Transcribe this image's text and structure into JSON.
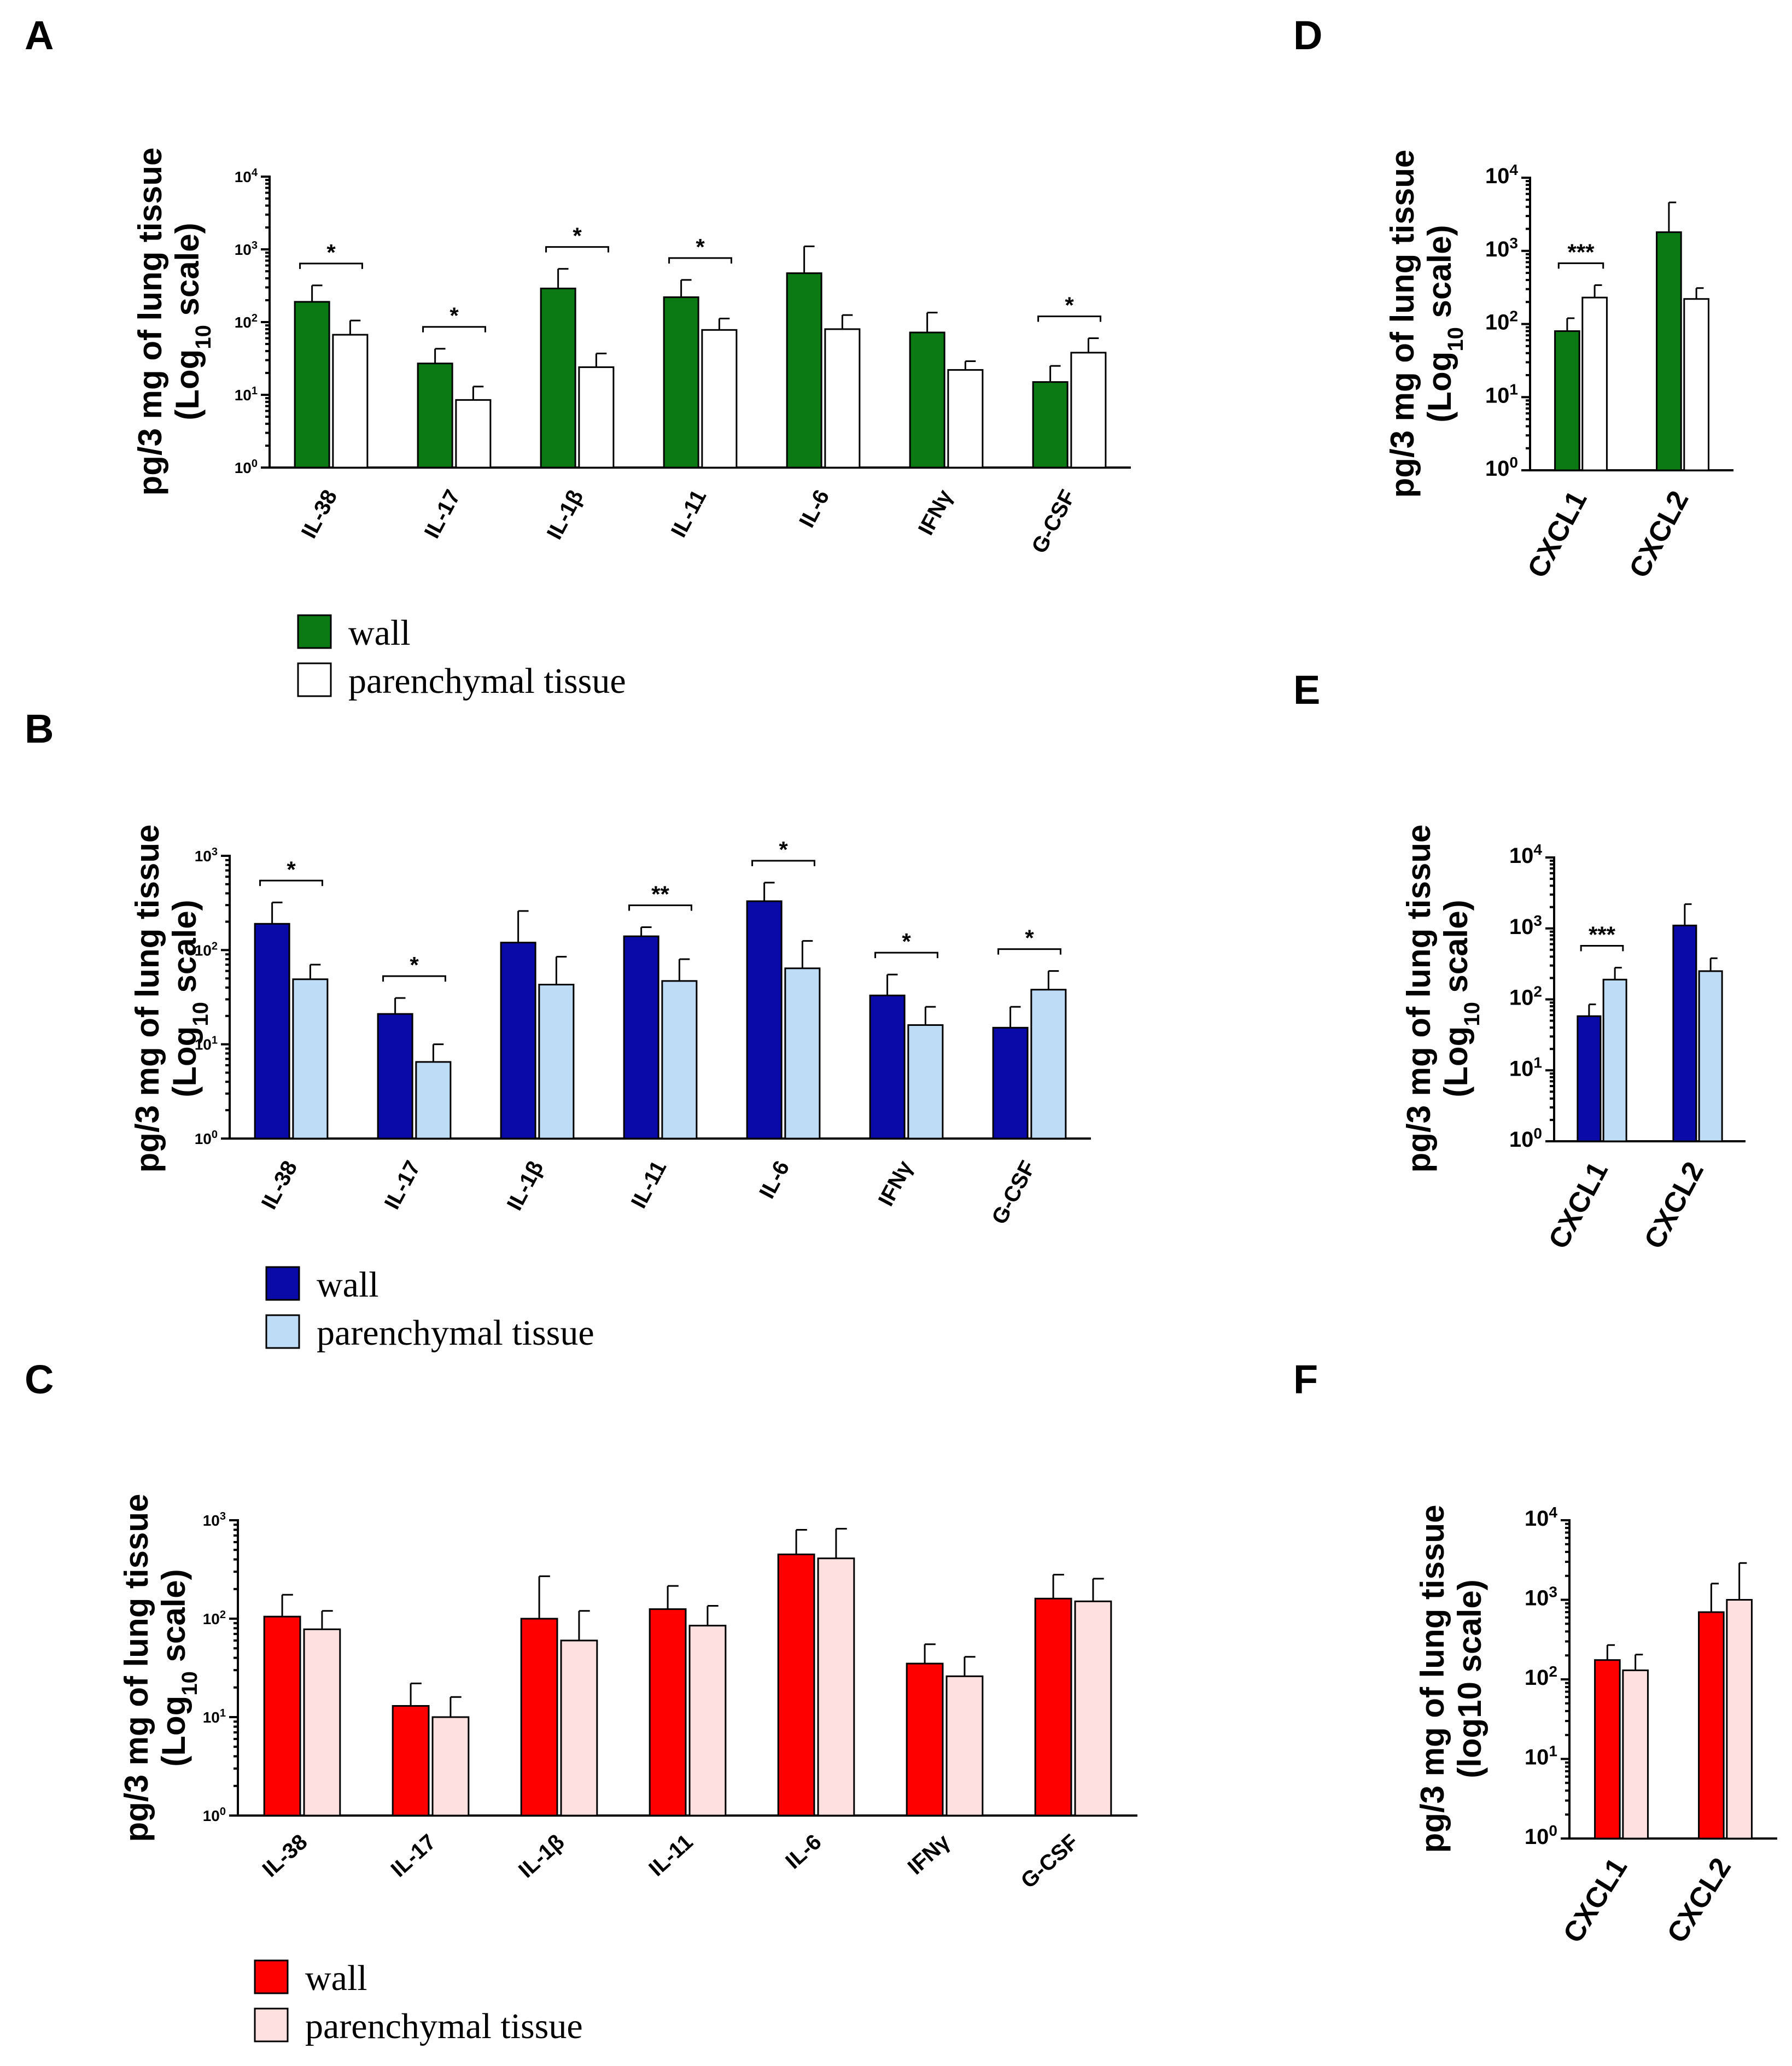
{
  "chart_data": [
    {
      "id": "A",
      "type": "bar",
      "panel_label": "A",
      "ylabel": "pg/3 mg of lung tissue",
      "ylabel_sub": [
        "(Log",
        "10",
        " scale)"
      ],
      "yscale": "log",
      "ylim": [
        1,
        10000
      ],
      "ytick_base": "10",
      "ytick_exps": [
        "0",
        "1",
        "2",
        "3",
        "4"
      ],
      "categories": [
        "IL-38",
        "IL-17",
        "IL-1β",
        "IL-11",
        "IL-6",
        "IFNγ",
        "G-CSF"
      ],
      "series": [
        {
          "name": "wall",
          "color": "#0b7a14",
          "values": [
            190,
            27,
            290,
            220,
            470,
            72,
            15
          ],
          "errors": [
            320,
            43,
            540,
            380,
            1100,
            135,
            25
          ]
        },
        {
          "name": "parenchymal tissue",
          "color": "#ffffff",
          "values": [
            67,
            8.5,
            24,
            78,
            80,
            22,
            38
          ],
          "errors": [
            105,
            13,
            37,
            112,
            125,
            29,
            60
          ]
        }
      ],
      "significance": [
        {
          "category": 0,
          "label": "*"
        },
        {
          "category": 1,
          "label": "*"
        },
        {
          "category": 2,
          "label": "*"
        },
        {
          "category": 3,
          "label": "*"
        },
        {
          "category": 6,
          "label": "*"
        }
      ],
      "legend": [
        {
          "label": "wall",
          "color": "#0b7a14"
        },
        {
          "label": "parenchymal tissue",
          "color": "#ffffff"
        }
      ]
    },
    {
      "id": "B",
      "type": "bar",
      "panel_label": "B",
      "ylabel": "pg/3 mg of lung tissue",
      "ylabel_sub": [
        "(Log",
        "10",
        " scale)"
      ],
      "yscale": "log",
      "ylim": [
        1,
        1000
      ],
      "ytick_base": "10",
      "ytick_exps": [
        "0",
        "1",
        "2",
        "3"
      ],
      "categories": [
        "IL-38",
        "IL-17",
        "IL-1β",
        "IL-11",
        "IL-6",
        "IFNγ",
        "G-CSF"
      ],
      "series": [
        {
          "name": "wall",
          "color": "#0a0aa8",
          "values": [
            190,
            21,
            120,
            140,
            330,
            33,
            15
          ],
          "errors": [
            320,
            31,
            260,
            175,
            520,
            55,
            25
          ]
        },
        {
          "name": "parenchymal tissue",
          "color": "#bfdcf7",
          "values": [
            49,
            6.5,
            43,
            47,
            64,
            16,
            38
          ],
          "errors": [
            70,
            10,
            85,
            80,
            125,
            25,
            60
          ]
        }
      ],
      "significance": [
        {
          "category": 0,
          "label": "*"
        },
        {
          "category": 1,
          "label": "*"
        },
        {
          "category": 3,
          "label": "**"
        },
        {
          "category": 4,
          "label": "*"
        },
        {
          "category": 5,
          "label": "*"
        },
        {
          "category": 6,
          "label": "*"
        }
      ],
      "legend": [
        {
          "label": "wall",
          "color": "#0a0aa8"
        },
        {
          "label": "parenchymal tissue",
          "color": "#bfdcf7"
        }
      ]
    },
    {
      "id": "C",
      "type": "bar",
      "panel_label": "C",
      "ylabel": "pg/3 mg of lung tissue",
      "ylabel_sub": [
        "(Log",
        "10",
        " scale)"
      ],
      "yscale": "log",
      "ylim": [
        1,
        1000
      ],
      "ytick_base": "10",
      "ytick_exps": [
        "0",
        "1",
        "2",
        "3"
      ],
      "categories": [
        "IL-38",
        "IL-17",
        "IL-1β",
        "IL-11",
        "IL-6",
        "IFNγ",
        "G-CSF"
      ],
      "series": [
        {
          "name": "wall",
          "color": "#ff0000",
          "values": [
            105,
            13,
            100,
            125,
            450,
            35,
            160
          ],
          "errors": [
            175,
            22,
            270,
            215,
            800,
            55,
            280
          ]
        },
        {
          "name": "parenchymal tissue",
          "color": "#ffe0e0",
          "values": [
            78,
            10,
            60,
            85,
            410,
            26,
            150
          ],
          "errors": [
            120,
            16,
            120,
            135,
            820,
            41,
            255
          ]
        }
      ],
      "significance": [],
      "legend": [
        {
          "label": "wall",
          "color": "#ff0000"
        },
        {
          "label": "parenchymal tissue",
          "color": "#ffe0e0"
        }
      ]
    },
    {
      "id": "D",
      "type": "bar",
      "panel_label": "D",
      "ylabel": "pg/3 mg of lung tissue",
      "ylabel_sub": [
        "(Log",
        "10",
        " scale)"
      ],
      "yscale": "log",
      "ylim": [
        1,
        10000
      ],
      "ytick_base": "10",
      "ytick_exps": [
        "0",
        "1",
        "2",
        "3",
        "4"
      ],
      "categories": [
        "CXCL1",
        "CXCL2"
      ],
      "series": [
        {
          "name": "wall",
          "color": "#0b7a14",
          "values": [
            80,
            1800
          ],
          "errors": [
            120,
            4600
          ]
        },
        {
          "name": "parenchymal tissue",
          "color": "#ffffff",
          "values": [
            230,
            220
          ],
          "errors": [
            340,
            310
          ]
        }
      ],
      "significance": [
        {
          "category": 0,
          "label": "***"
        }
      ]
    },
    {
      "id": "E",
      "type": "bar",
      "panel_label": "E",
      "ylabel": "pg/3 mg of lung tissue",
      "ylabel_sub": [
        "(Log",
        "10",
        " scale)"
      ],
      "yscale": "log",
      "ylim": [
        1,
        10000
      ],
      "ytick_base": "10",
      "ytick_exps": [
        "0",
        "1",
        "2",
        "3",
        "4"
      ],
      "categories": [
        "CXCL1",
        "CXCL2"
      ],
      "series": [
        {
          "name": "wall",
          "color": "#0a0aa8",
          "values": [
            58,
            1100
          ],
          "errors": [
            85,
            2200
          ]
        },
        {
          "name": "parenchymal tissue",
          "color": "#bfdcf7",
          "values": [
            190,
            250
          ],
          "errors": [
            280,
            380
          ]
        }
      ],
      "significance": [
        {
          "category": 0,
          "label": "***"
        }
      ]
    },
    {
      "id": "F",
      "type": "bar",
      "panel_label": "F",
      "ylabel": "pg/3 mg of lung tissue",
      "ylabel_sub": [
        "(log10 scale)"
      ],
      "yscale": "log",
      "ylim": [
        1,
        10000
      ],
      "ytick_base": "10",
      "ytick_exps": [
        "0",
        "1",
        "2",
        "3",
        "4"
      ],
      "categories": [
        "CXCL1",
        "CXCL2"
      ],
      "series": [
        {
          "name": "wall",
          "color": "#ff0000",
          "values": [
            175,
            700
          ],
          "errors": [
            270,
            1600
          ]
        },
        {
          "name": "parenchymal tissue",
          "color": "#ffe0e0",
          "values": [
            130,
            1000
          ],
          "errors": [
            205,
            2900
          ]
        }
      ],
      "significance": []
    }
  ]
}
